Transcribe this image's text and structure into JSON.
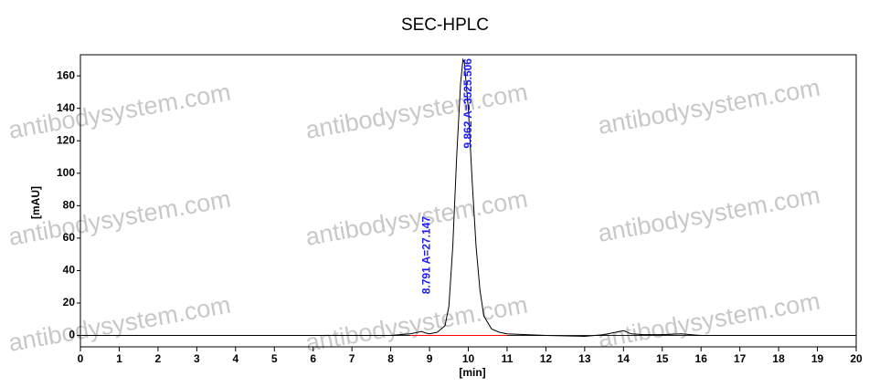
{
  "chart_data": {
    "type": "line",
    "title": "SEC-HPLC",
    "xlabel": "[min]",
    "ylabel": "[mAU]",
    "watermark": "antibodysystem.com",
    "x": [
      0,
      1,
      2,
      3,
      4,
      5,
      6,
      7,
      8,
      8.5,
      8.7,
      8.8,
      8.9,
      9.0,
      9.2,
      9.4,
      9.5,
      9.6,
      9.7,
      9.8,
      9.862,
      9.9,
      10.0,
      10.1,
      10.2,
      10.3,
      10.4,
      10.6,
      10.8,
      11,
      11.5,
      12,
      13,
      13.5,
      13.8,
      14,
      14.2,
      14.5,
      15,
      15.5,
      16,
      17,
      18,
      19,
      20
    ],
    "values": [
      0,
      0,
      0,
      0,
      0,
      0,
      0,
      0,
      0,
      1,
      2,
      2.5,
      1.5,
      1,
      2,
      6,
      18,
      55,
      110,
      155,
      170,
      168,
      140,
      95,
      55,
      28,
      12,
      4,
      2,
      1,
      0.5,
      0,
      -0.5,
      0.5,
      2,
      3,
      1,
      0.5,
      0.5,
      1,
      0,
      0,
      0,
      0,
      0
    ],
    "color": "#000000",
    "baseline": {
      "x": [
        8.5,
        11
      ],
      "values": [
        0,
        0
      ],
      "color": "#ff0000"
    },
    "annotations": [
      {
        "text": "9.862 A=3525.506",
        "x": 9.862
      },
      {
        "text": "8.791 A=27.147",
        "x": 8.791
      }
    ],
    "annotation_color": "#1a1aff",
    "xlim": [
      0,
      20
    ],
    "xticks": [
      0,
      1,
      2,
      3,
      4,
      5,
      6,
      7,
      8,
      9,
      10,
      11,
      12,
      13,
      14,
      15,
      16,
      17,
      18,
      19,
      20
    ],
    "ylim": [
      -7,
      173
    ],
    "yticks": [
      0,
      20,
      40,
      60,
      80,
      100,
      120,
      140,
      160
    ],
    "grid": false
  }
}
